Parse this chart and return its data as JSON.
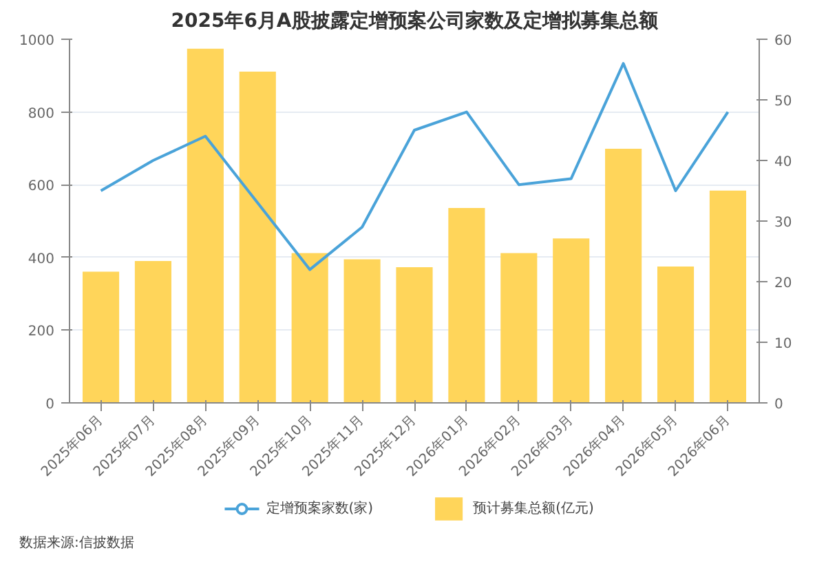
{
  "chart_data": {
    "type": "bar",
    "title": "2025年6月A股披露定增预案公司家数及定增拟募集总额",
    "categories": [
      "2025年06月",
      "2025年07月",
      "2025年08月",
      "2025年09月",
      "2025年10月",
      "2025年11月",
      "2025年12月",
      "2026年01月",
      "2026年02月",
      "2026年03月",
      "2026年04月",
      "2026年05月",
      "2026年06月"
    ],
    "series": [
      {
        "name": "定增预案家数(家)",
        "type": "line",
        "axis": "y2",
        "color": "#4aa3d9",
        "values": [
          35,
          40,
          44,
          33,
          22,
          29,
          45,
          48,
          36,
          37,
          56,
          35,
          48
        ]
      },
      {
        "name": "预计募集总额(亿元)",
        "color": "#ffd55a",
        "values": [
          361,
          390,
          974,
          911,
          412,
          395,
          373,
          536,
          412,
          452,
          699,
          375,
          584
        ]
      }
    ],
    "ylim": [
      0,
      1000
    ],
    "yticks": [
      0,
      200,
      400,
      600,
      800,
      1000
    ],
    "y2lim": [
      0,
      60
    ],
    "y2ticks": [
      0,
      10,
      20,
      30,
      40,
      50,
      60
    ],
    "grid": "y",
    "legend": "bottom",
    "marker": "none",
    "line_style": "solid",
    "annotations": [
      "数据来源:信披数据"
    ]
  }
}
